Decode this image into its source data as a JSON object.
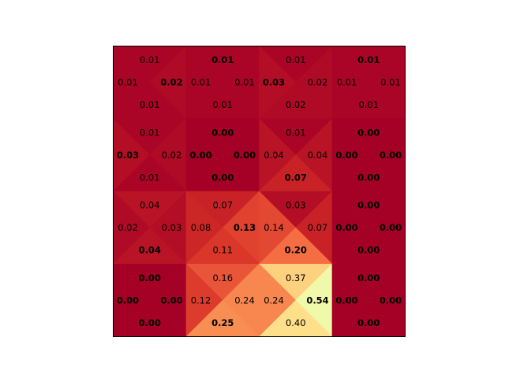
{
  "chart_data": {
    "type": "heatmap",
    "subtype": "q-value triangle grid",
    "rows": 4,
    "cols": 4,
    "triangle_order": [
      "top",
      "left",
      "right",
      "bottom"
    ],
    "colormap": "RdYlGn",
    "value_range": [
      0,
      1
    ],
    "grid": false,
    "cells": [
      [
        {
          "top": "0.01",
          "left": "0.01",
          "right": "0.02",
          "bottom": "0.01",
          "best": "right"
        },
        {
          "top": "0.01",
          "left": "0.01",
          "right": "0.01",
          "bottom": "0.01",
          "best": "top"
        },
        {
          "top": "0.01",
          "left": "0.03",
          "right": "0.02",
          "bottom": "0.02",
          "best": "left"
        },
        {
          "top": "0.01",
          "left": "0.01",
          "right": "0.01",
          "bottom": "0.01",
          "best": "top"
        }
      ],
      [
        {
          "top": "0.01",
          "left": "0.03",
          "right": "0.02",
          "bottom": "0.01",
          "best": "left"
        },
        {
          "top": "0.00",
          "left": "0.00",
          "right": "0.00",
          "bottom": "0.00",
          "best": "all"
        },
        {
          "top": "0.01",
          "left": "0.04",
          "right": "0.04",
          "bottom": "0.07",
          "best": "bottom"
        },
        {
          "top": "0.00",
          "left": "0.00",
          "right": "0.00",
          "bottom": "0.00",
          "best": "all"
        }
      ],
      [
        {
          "top": "0.04",
          "left": "0.02",
          "right": "0.03",
          "bottom": "0.04",
          "best": "bottom"
        },
        {
          "top": "0.07",
          "left": "0.08",
          "right": "0.13",
          "bottom": "0.11",
          "best": "right"
        },
        {
          "top": "0.03",
          "left": "0.14",
          "right": "0.07",
          "bottom": "0.20",
          "best": "bottom"
        },
        {
          "top": "0.00",
          "left": "0.00",
          "right": "0.00",
          "bottom": "0.00",
          "best": "all"
        }
      ],
      [
        {
          "top": "0.00",
          "left": "0.00",
          "right": "0.00",
          "bottom": "0.00",
          "best": "all"
        },
        {
          "top": "0.16",
          "left": "0.12",
          "right": "0.24",
          "bottom": "0.25",
          "best": "bottom"
        },
        {
          "top": "0.37",
          "left": "0.24",
          "right": "0.54",
          "bottom": "0.40",
          "best": "right"
        },
        {
          "top": "0.00",
          "left": "0.00",
          "right": "0.00",
          "bottom": "0.00",
          "best": "all"
        }
      ]
    ]
  }
}
